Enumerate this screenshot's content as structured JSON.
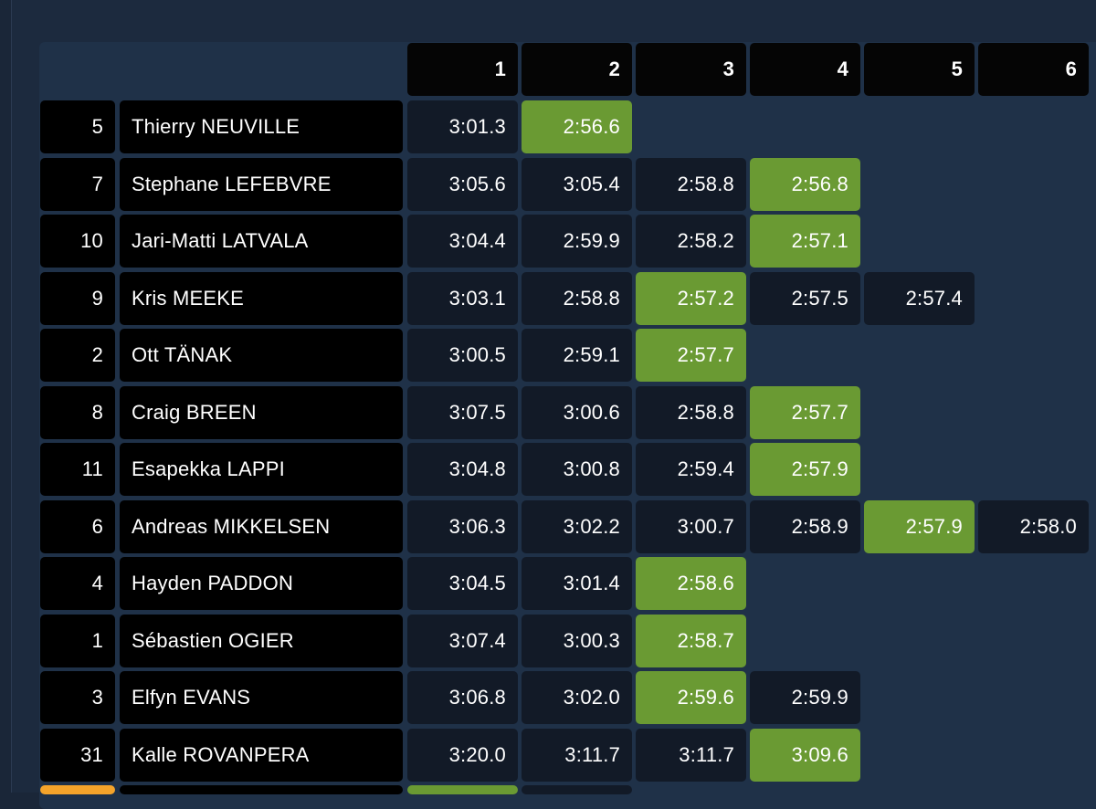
{
  "colors": {
    "best": "#6a9a33",
    "time_cell": "#121a27",
    "dark_cell": "#000000",
    "panel": "#1f3148",
    "orange_marker": "#f4a32a"
  },
  "columns": [
    "1",
    "2",
    "3",
    "4",
    "5",
    "6"
  ],
  "rows": [
    {
      "number": "5",
      "driver": "Thierry NEUVILLE",
      "times": [
        "3:01.3",
        "2:56.6"
      ],
      "best": 1
    },
    {
      "number": "7",
      "driver": "Stephane LEFEBVRE",
      "times": [
        "3:05.6",
        "3:05.4",
        "2:58.8",
        "2:56.8"
      ],
      "best": 3
    },
    {
      "number": "10",
      "driver": "Jari-Matti LATVALA",
      "times": [
        "3:04.4",
        "2:59.9",
        "2:58.2",
        "2:57.1"
      ],
      "best": 3
    },
    {
      "number": "9",
      "driver": "Kris MEEKE",
      "times": [
        "3:03.1",
        "2:58.8",
        "2:57.2",
        "2:57.5",
        "2:57.4"
      ],
      "best": 2
    },
    {
      "number": "2",
      "driver": "Ott TÄNAK",
      "times": [
        "3:00.5",
        "2:59.1",
        "2:57.7"
      ],
      "best": 2
    },
    {
      "number": "8",
      "driver": "Craig BREEN",
      "times": [
        "3:07.5",
        "3:00.6",
        "2:58.8",
        "2:57.7"
      ],
      "best": 3
    },
    {
      "number": "11",
      "driver": "Esapekka LAPPI",
      "times": [
        "3:04.8",
        "3:00.8",
        "2:59.4",
        "2:57.9"
      ],
      "best": 3
    },
    {
      "number": "6",
      "driver": "Andreas MIKKELSEN",
      "times": [
        "3:06.3",
        "3:02.2",
        "3:00.7",
        "2:58.9",
        "2:57.9",
        "2:58.0"
      ],
      "best": 4
    },
    {
      "number": "4",
      "driver": "Hayden PADDON",
      "times": [
        "3:04.5",
        "3:01.4",
        "2:58.6"
      ],
      "best": 2
    },
    {
      "number": "1",
      "driver": "Sébastien OGIER",
      "times": [
        "3:07.4",
        "3:00.3",
        "2:58.7"
      ],
      "best": 2
    },
    {
      "number": "3",
      "driver": "Elfyn EVANS",
      "times": [
        "3:06.8",
        "3:02.0",
        "2:59.6",
        "2:59.9"
      ],
      "best": 2
    },
    {
      "number": "31",
      "driver": "Kalle ROVANPERA",
      "times": [
        "3:20.0",
        "3:11.7",
        "3:11.7",
        "3:09.6"
      ],
      "best": 3
    }
  ],
  "partial_row": {
    "marker": "orange",
    "cells": [
      "num",
      "name",
      "best",
      "time"
    ]
  }
}
